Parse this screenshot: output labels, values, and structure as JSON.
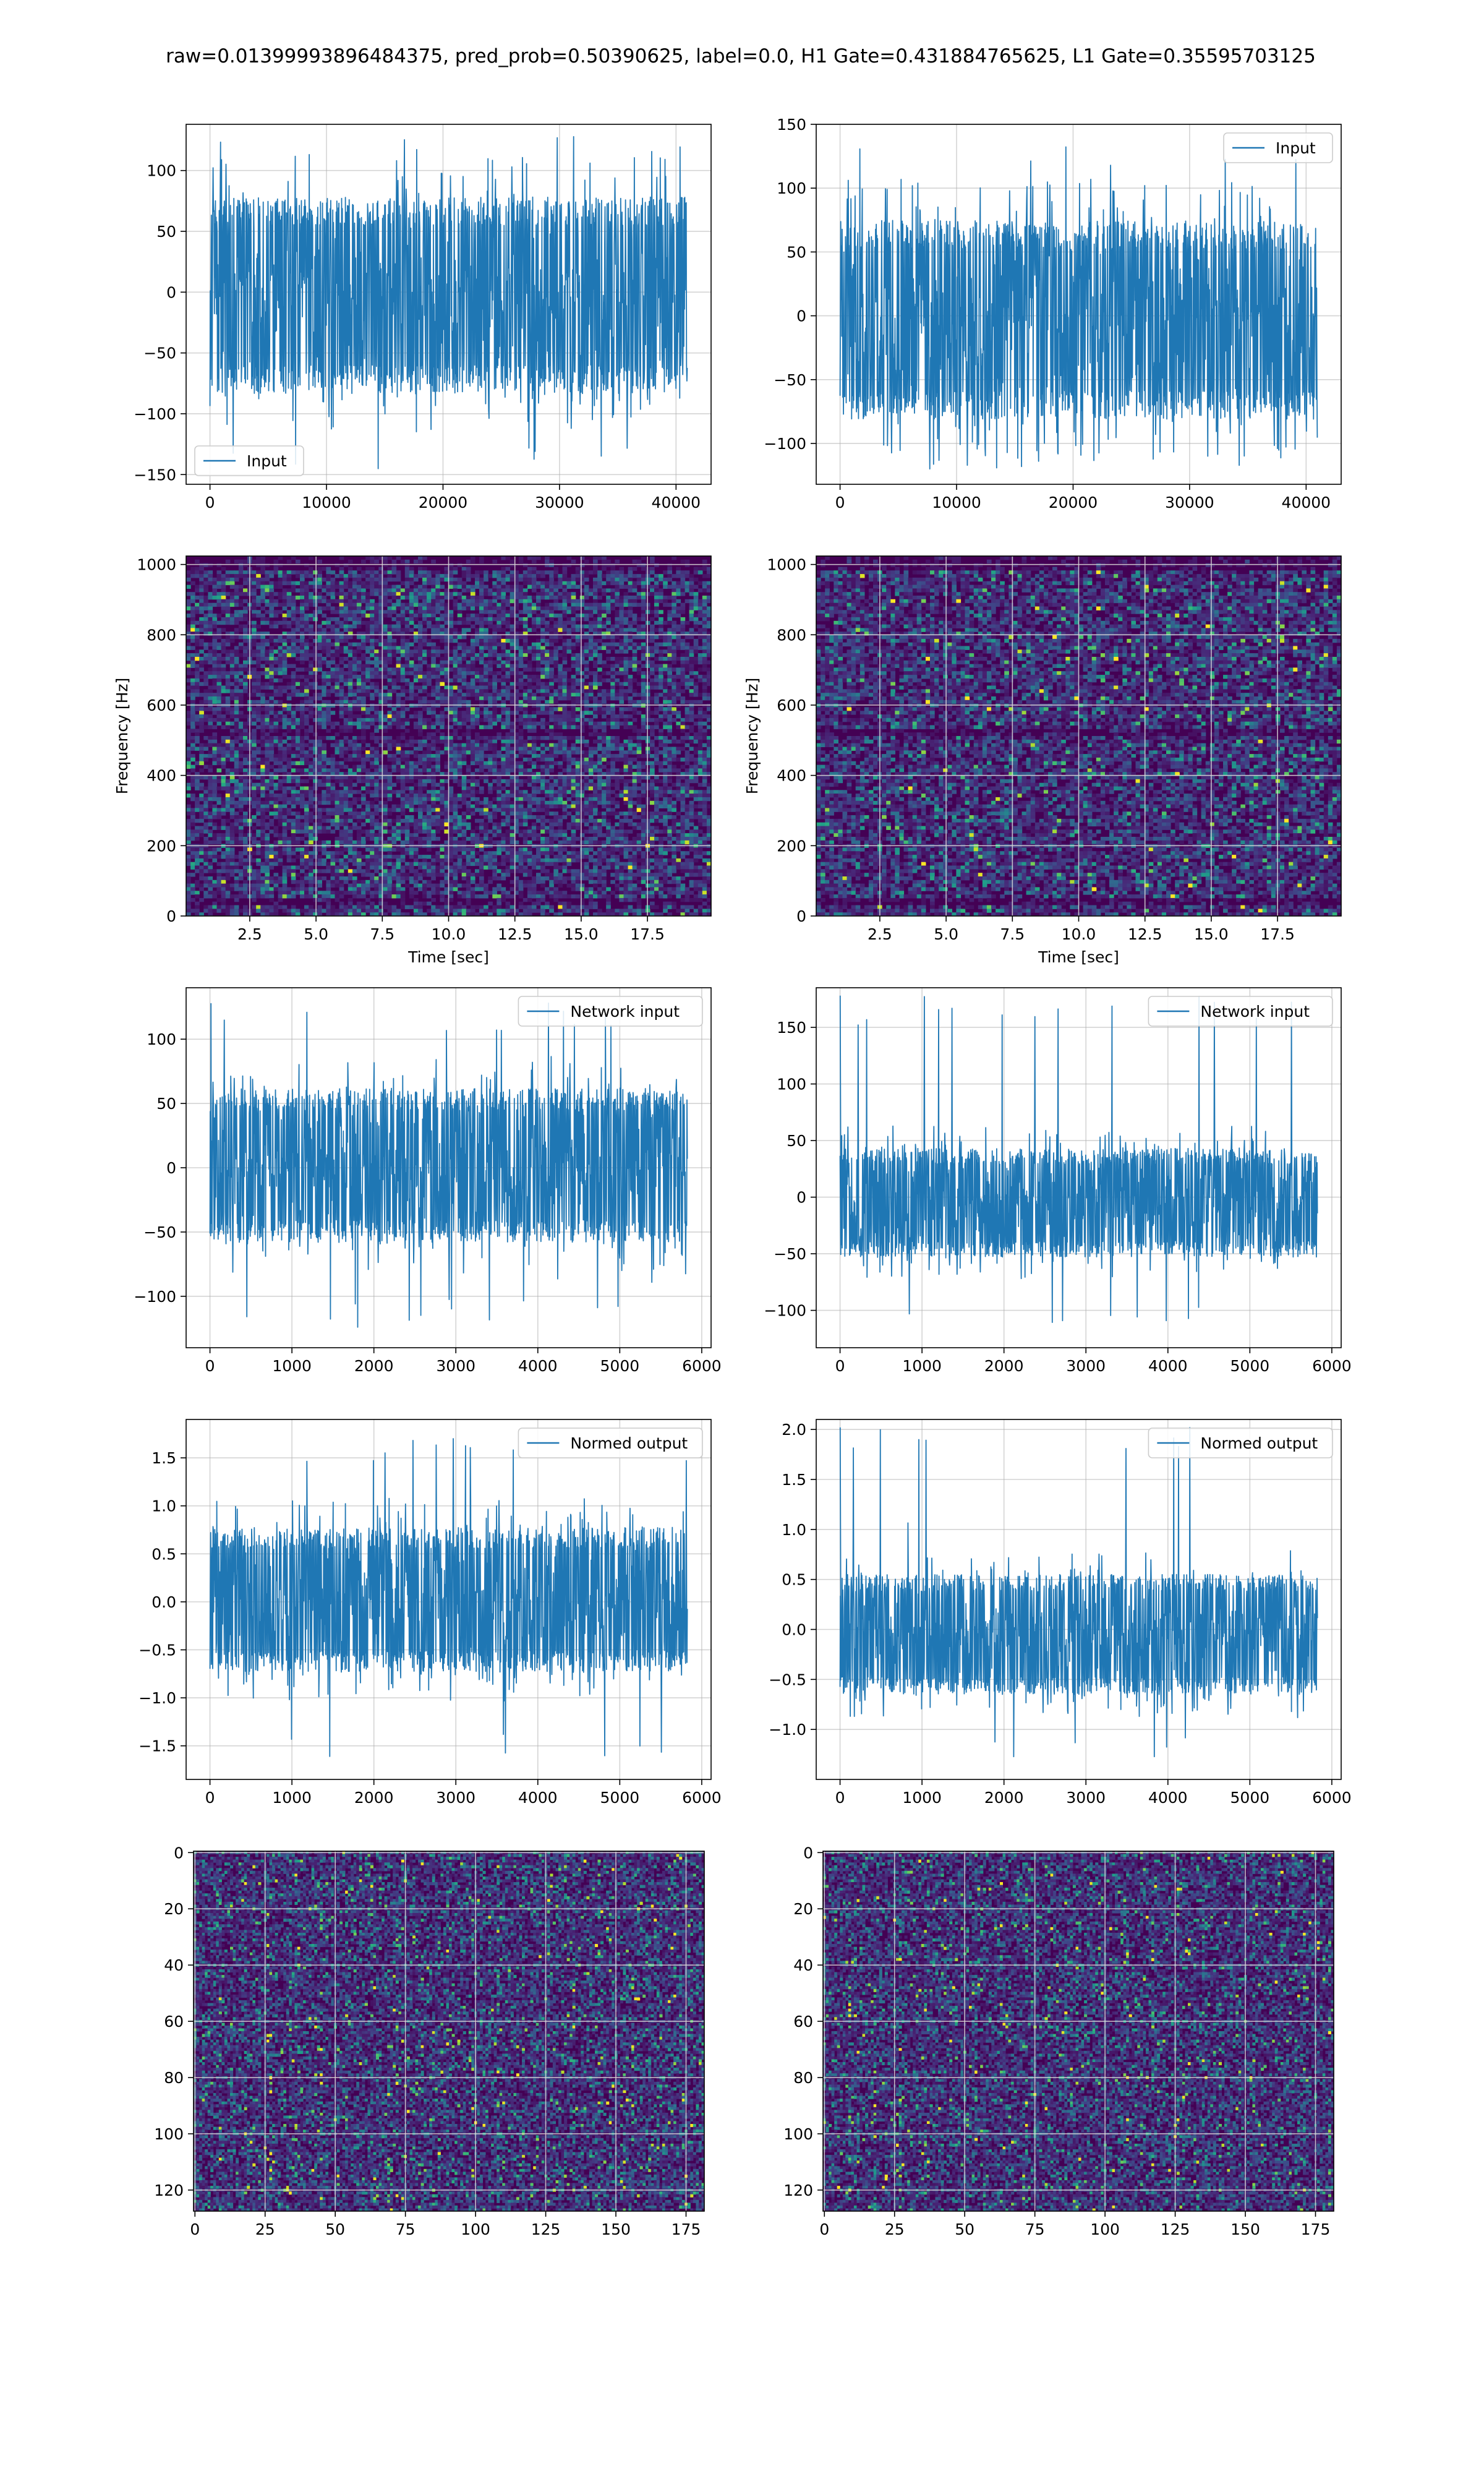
{
  "figure": {
    "suptitle": "raw=0.01399993896484375, pred_prob=0.50390625, label=0.0, H1 Gate=0.431884765625, L1 Gate=0.35595703125"
  },
  "colors": {
    "line": "#1f77b4",
    "grid": "#b0b0b0",
    "viridis": [
      "#440154",
      "#482878",
      "#3e4989",
      "#31688e",
      "#26828e",
      "#1f9e89",
      "#35b779",
      "#6ece58",
      "#b5de2b",
      "#fde725"
    ]
  },
  "chart_data": [
    {
      "id": "h1-input",
      "type": "line",
      "title": "",
      "xlabel": "",
      "ylabel": "",
      "legend": {
        "label": "Input",
        "loc": "lower-left"
      },
      "xlim": [
        -2048,
        43008
      ],
      "ylim": [
        -158,
        138
      ],
      "xticks": [
        0,
        10000,
        20000,
        30000,
        40000
      ],
      "yticks": [
        -150,
        -100,
        -50,
        0,
        50,
        100
      ],
      "grid": true,
      "series": [
        {
          "name": "Input",
          "n_samples": 40960,
          "x_range": [
            0,
            40960
          ],
          "body_range": [
            -70,
            65
          ],
          "peak_range": [
            -148,
            128
          ]
        }
      ]
    },
    {
      "id": "l1-input",
      "type": "line",
      "title": "",
      "xlabel": "",
      "ylabel": "",
      "legend": {
        "label": "Input",
        "loc": "upper-right"
      },
      "xlim": [
        -2048,
        43008
      ],
      "ylim": [
        -132,
        150
      ],
      "xticks": [
        0,
        10000,
        20000,
        30000,
        40000
      ],
      "yticks": [
        -100,
        -50,
        0,
        50,
        100,
        150
      ],
      "grid": true,
      "series": [
        {
          "name": "Input",
          "n_samples": 40960,
          "x_range": [
            0,
            40960
          ],
          "body_range": [
            -68,
            62
          ],
          "peak_range": [
            -120,
            138
          ]
        }
      ]
    },
    {
      "id": "h1-spectrogram",
      "type": "heatmap",
      "title": "",
      "xlabel": "Time [sec]",
      "ylabel": "Frequency [Hz]",
      "xlim": [
        0.1,
        19.9
      ],
      "ylim": [
        0,
        1024
      ],
      "xticks": [
        2.5,
        5.0,
        7.5,
        10.0,
        12.5,
        15.0,
        17.5
      ],
      "yticks": [
        0,
        200,
        400,
        600,
        800,
        1000
      ],
      "grid": true,
      "colormap": "viridis"
    },
    {
      "id": "l1-spectrogram",
      "type": "heatmap",
      "title": "",
      "xlabel": "Time [sec]",
      "ylabel": "Frequency [Hz]",
      "xlim": [
        0.1,
        19.9
      ],
      "ylim": [
        0,
        1024
      ],
      "xticks": [
        2.5,
        5.0,
        7.5,
        10.0,
        12.5,
        15.0,
        17.5
      ],
      "yticks": [
        0,
        200,
        400,
        600,
        800,
        1000
      ],
      "grid": true,
      "colormap": "viridis"
    },
    {
      "id": "h1-network-input",
      "type": "line",
      "title": "",
      "xlabel": "",
      "ylabel": "",
      "legend": {
        "label": "Network input",
        "loc": "upper-right"
      },
      "xlim": [
        -291,
        6114
      ],
      "ylim": [
        -140,
        140
      ],
      "xticks": [
        0,
        1000,
        2000,
        3000,
        4000,
        5000,
        6000
      ],
      "yticks": [
        -100,
        -50,
        0,
        50,
        100
      ],
      "grid": true,
      "series": [
        {
          "name": "Network input",
          "n_samples": 5824,
          "x_range": [
            0,
            5824
          ],
          "body_range": [
            -48,
            52
          ],
          "peak_range": [
            -125,
            130
          ]
        }
      ]
    },
    {
      "id": "l1-network-input",
      "type": "line",
      "title": "",
      "xlabel": "",
      "ylabel": "",
      "legend": {
        "label": "Network input",
        "loc": "upper-right"
      },
      "xlim": [
        -291,
        6114
      ],
      "ylim": [
        -133,
        185
      ],
      "xticks": [
        0,
        1000,
        2000,
        3000,
        4000,
        5000,
        6000
      ],
      "yticks": [
        -100,
        -50,
        0,
        50,
        100,
        150
      ],
      "grid": true,
      "series": [
        {
          "name": "Network input",
          "n_samples": 5824,
          "x_range": [
            0,
            5824
          ],
          "body_range": [
            -45,
            35
          ],
          "peak_range": [
            -115,
            178
          ]
        }
      ]
    },
    {
      "id": "h1-normed-output",
      "type": "line",
      "title": "",
      "xlabel": "",
      "ylabel": "",
      "legend": {
        "label": "Normed output",
        "loc": "upper-right"
      },
      "xlim": [
        -291,
        6114
      ],
      "ylim": [
        -1.85,
        1.9
      ],
      "xticks": [
        0,
        1000,
        2000,
        3000,
        4000,
        5000,
        6000
      ],
      "yticks": [
        -1.5,
        -1.0,
        -0.5,
        0.0,
        0.5,
        1.0,
        1.5
      ],
      "grid": true,
      "series": [
        {
          "name": "Normed output",
          "n_samples": 5824,
          "x_range": [
            0,
            5824
          ],
          "body_range": [
            -0.6,
            0.65
          ],
          "peak_range": [
            -1.68,
            1.72
          ]
        }
      ]
    },
    {
      "id": "l1-normed-output",
      "type": "line",
      "title": "",
      "xlabel": "",
      "ylabel": "",
      "legend": {
        "label": "Normed output",
        "loc": "upper-right"
      },
      "xlim": [
        -291,
        6114
      ],
      "ylim": [
        -1.5,
        2.1
      ],
      "xticks": [
        0,
        1000,
        2000,
        3000,
        4000,
        5000,
        6000
      ],
      "yticks": [
        -1.0,
        -0.5,
        0.0,
        0.5,
        1.0,
        1.5,
        2.0
      ],
      "grid": true,
      "series": [
        {
          "name": "Normed output",
          "n_samples": 5824,
          "x_range": [
            0,
            5824
          ],
          "body_range": [
            -0.55,
            0.45
          ],
          "peak_range": [
            -1.3,
            2.02
          ]
        }
      ]
    },
    {
      "id": "h1-qtransform",
      "type": "heatmap",
      "title": "",
      "xlabel": "",
      "ylabel": "",
      "xlim": [
        -0.5,
        181.5
      ],
      "ylim": [
        127.5,
        -0.5
      ],
      "xticks": [
        0,
        25,
        50,
        75,
        100,
        125,
        150,
        175
      ],
      "yticks": [
        0,
        20,
        40,
        60,
        80,
        100,
        120
      ],
      "grid": true,
      "colormap": "viridis"
    },
    {
      "id": "l1-qtransform",
      "type": "heatmap",
      "title": "",
      "xlabel": "",
      "ylabel": "",
      "xlim": [
        -0.5,
        181.5
      ],
      "ylim": [
        127.5,
        -0.5
      ],
      "xticks": [
        0,
        25,
        50,
        75,
        100,
        125,
        150,
        175
      ],
      "yticks": [
        0,
        20,
        40,
        60,
        80,
        100,
        120
      ],
      "grid": true,
      "colormap": "viridis"
    }
  ]
}
